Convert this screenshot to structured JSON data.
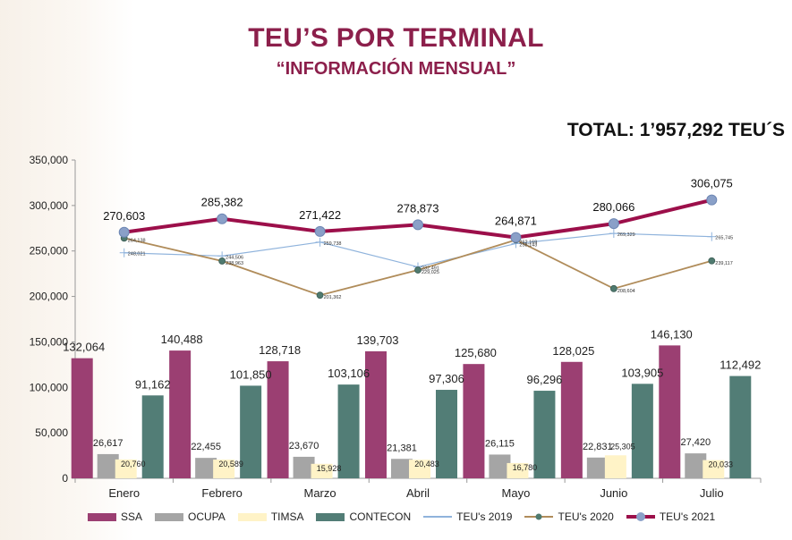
{
  "title": "TEU’S POR TERMINAL",
  "subtitle": "“INFORMACIÓN MENSUAL”",
  "total": "TOTAL: 1’957,292 TEU´S",
  "chart_data": {
    "type": "bar",
    "categories": [
      "Enero",
      "Febrero",
      "Marzo",
      "Abril",
      "Mayo",
      "Junio",
      "Julio"
    ],
    "ylim": [
      0,
      350000
    ],
    "yticks": [
      "0",
      "50,000",
      "100,000",
      "150,000",
      "200,000",
      "250,000",
      "300,000",
      "350,000"
    ],
    "grid": false,
    "legend_position": "bottom",
    "series": [
      {
        "name": "SSA",
        "kind": "bar",
        "color": "#9b3f72",
        "values": [
          132064,
          140488,
          128718,
          139703,
          125680,
          128025,
          146130
        ],
        "labels": [
          "132,064",
          "140,488",
          "128,718",
          "139,703",
          "125,680",
          "128,025",
          "146,130"
        ]
      },
      {
        "name": "OCUPA",
        "kind": "bar",
        "color": "#a5a5a5",
        "values": [
          26617,
          22455,
          23670,
          21381,
          26115,
          22831,
          27420
        ],
        "labels": [
          "26,617",
          "22,455",
          "23,670",
          "21,381",
          "26,115",
          "22,831",
          "27,420"
        ]
      },
      {
        "name": "TIMSA",
        "kind": "bar",
        "color": "#fff3c7",
        "values": [
          20760,
          20589,
          15928,
          20483,
          16780,
          25305,
          20033
        ],
        "labels": [
          "20,760",
          "20,589",
          "15,928",
          "20,483",
          "16,780",
          "25,305",
          "20,033"
        ]
      },
      {
        "name": "CONTECON",
        "kind": "bar",
        "color": "#527d76",
        "values": [
          91162,
          101850,
          103106,
          97306,
          96296,
          103905,
          112492
        ],
        "labels": [
          "91,162",
          "101,850",
          "103,106",
          "97,306",
          "96,296",
          "103,905",
          "112,492"
        ]
      },
      {
        "name": "TEU's 2019",
        "kind": "line",
        "color": "#8fb3dc",
        "values": [
          248021,
          244506,
          259738,
          232491,
          258143,
          269329,
          265745
        ],
        "labels": [
          "248,021",
          "244,506",
          "259,738",
          "232,491",
          "258,143",
          "269,329",
          "265,745"
        ]
      },
      {
        "name": "TEU's 2020",
        "kind": "line",
        "color": "#b08c5a",
        "values": [
          264138,
          238963,
          201362,
          229025,
          262169,
          208604,
          239117
        ],
        "labels": [
          "264,138",
          "238,963",
          "201,362",
          "229,025",
          "262,169",
          "208,604",
          "239,117"
        ]
      },
      {
        "name": "TEU's 2021",
        "kind": "line",
        "color": "#9c0f4a",
        "values": [
          270603,
          285382,
          271422,
          278873,
          264871,
          280066,
          306075
        ],
        "labels": [
          "270,603",
          "285,382",
          "271,422",
          "278,873",
          "264,871",
          "280,066",
          "306,075"
        ]
      }
    ]
  }
}
